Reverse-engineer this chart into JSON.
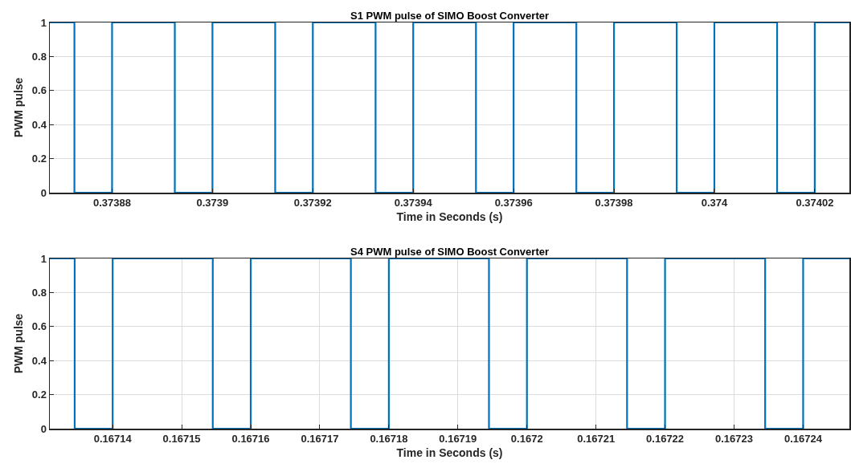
{
  "chart_data": [
    {
      "type": "step",
      "title": "S1 PWM pulse of SIMO Boost Converter",
      "xlabel": "Time in Seconds (s)",
      "ylabel": "PWM pulse",
      "x": [
        0.3738676,
        0.3738725,
        0.37388,
        0.3738925,
        0.3739,
        0.3739125,
        0.37392,
        0.3739325,
        0.37394,
        0.3739525,
        0.37396,
        0.3739725,
        0.37398,
        0.3739925,
        0.374,
        0.3740125,
        0.37402,
        0.3740269
      ],
      "values": [
        1,
        0,
        1,
        0,
        1,
        0,
        1,
        0,
        1,
        0,
        1,
        0,
        1,
        0,
        1,
        0,
        1,
        1
      ],
      "color": "#0072bd",
      "xlim": [
        0.3738676,
        0.3740269
      ],
      "ylim": [
        0,
        1
      ],
      "xticks": [
        0.37388,
        0.3739,
        0.37392,
        0.37394,
        0.37396,
        0.37398,
        0.374,
        0.37402
      ],
      "yticks": [
        0,
        0.2,
        0.4,
        0.6,
        0.8,
        1
      ],
      "grid": true
    },
    {
      "type": "step",
      "title": "S4 PWM pulse of SIMO Boost Converter",
      "xlabel": "Time in Seconds (s)",
      "ylabel": "PWM pulse",
      "x": [
        0.1671309,
        0.1671345,
        0.16714,
        0.1671545,
        0.16716,
        0.1671745,
        0.16718,
        0.1671945,
        0.1672,
        0.1672145,
        0.16722,
        0.1672345,
        0.16724,
        0.1672467
      ],
      "values": [
        1,
        0,
        1,
        0,
        1,
        0,
        1,
        0,
        1,
        0,
        1,
        0,
        1,
        1
      ],
      "color": "#0072bd",
      "xlim": [
        0.1671309,
        0.1672467
      ],
      "ylim": [
        0,
        1
      ],
      "xticks": [
        0.16714,
        0.16715,
        0.16716,
        0.16717,
        0.16718,
        0.16719,
        0.1672,
        0.16721,
        0.16722,
        0.16723,
        0.16724
      ],
      "yticks": [
        0,
        0.2,
        0.4,
        0.6,
        0.8,
        1
      ],
      "grid": true
    }
  ]
}
